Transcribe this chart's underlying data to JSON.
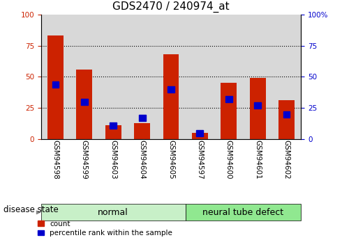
{
  "title": "GDS2470 / 240974_at",
  "samples": [
    "GSM94598",
    "GSM94599",
    "GSM94603",
    "GSM94604",
    "GSM94605",
    "GSM94597",
    "GSM94600",
    "GSM94601",
    "GSM94602"
  ],
  "red_values": [
    83,
    56,
    11,
    13,
    68,
    5,
    45,
    49,
    31
  ],
  "blue_values": [
    44,
    30,
    11,
    17,
    40,
    5,
    32,
    27,
    20
  ],
  "groups": [
    {
      "label": "normal",
      "start": 0,
      "end": 5,
      "color": "#c8f0c8"
    },
    {
      "label": "neural tube defect",
      "start": 5,
      "end": 9,
      "color": "#90e890"
    }
  ],
  "disease_state_label": "disease state",
  "ylim": [
    0,
    100
  ],
  "yticks": [
    0,
    25,
    50,
    75,
    100
  ],
  "red_color": "#cc2200",
  "blue_color": "#0000cc",
  "bar_bg_color": "#d8d8d8",
  "plot_bg_color": "#ffffff",
  "legend_items": [
    "count",
    "percentile rank within the sample"
  ],
  "title_fontsize": 11,
  "tick_fontsize": 7.5,
  "label_fontsize": 9,
  "right_ytick_labels": [
    "0",
    "25",
    "50",
    "75",
    "100%"
  ]
}
